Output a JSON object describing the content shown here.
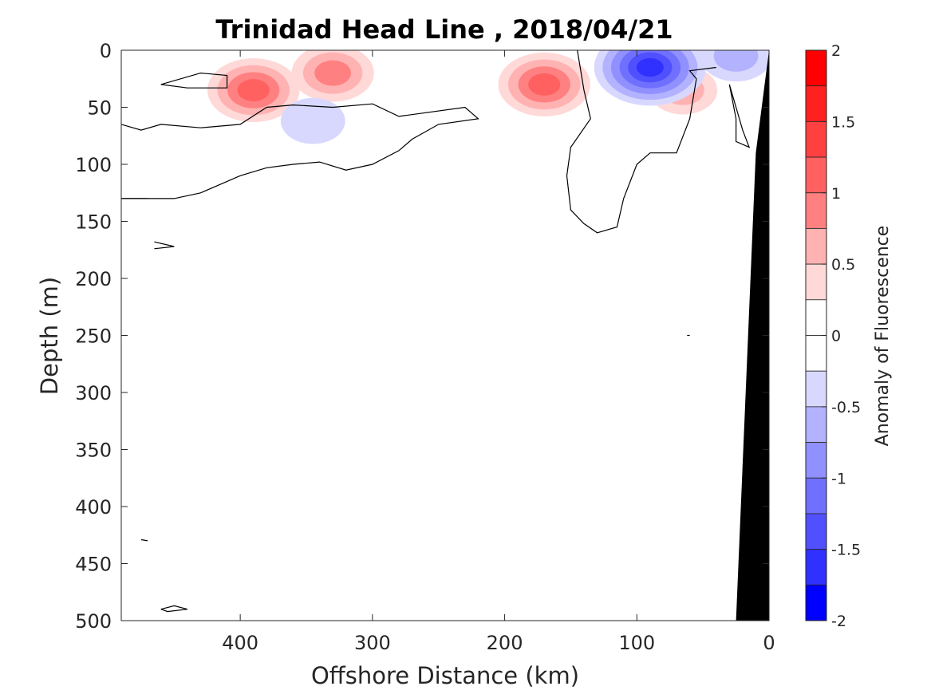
{
  "chart_data": {
    "type": "heatmap",
    "subtype": "filled-contour section",
    "title": "Trinidad Head Line , 2018/04/21",
    "xlabel": "Offshore Distance (km)",
    "ylabel": "Depth (m)",
    "colorbar_label": "Anomaly of Fluorescence",
    "xlim": [
      490,
      0
    ],
    "x_reversed": true,
    "ylim": [
      0,
      500
    ],
    "y_reversed": true,
    "xticks": [
      400,
      300,
      200,
      100,
      0
    ],
    "yticks": [
      0,
      50,
      100,
      150,
      200,
      250,
      300,
      350,
      400,
      450,
      500
    ],
    "colorbar": {
      "range": [
        -2,
        2
      ],
      "ticks": [
        2,
        1.5,
        1,
        0.5,
        0,
        -0.5,
        -1,
        -1.5,
        -2
      ],
      "tick_labels": [
        "2",
        "1.5",
        "1",
        "0.5",
        "0",
        "-0.5",
        "-1",
        "-1.5",
        "-2"
      ],
      "levels": [
        2,
        1.75,
        1.5,
        1.25,
        1,
        0.75,
        0.5,
        0.25,
        0,
        -0.25,
        -0.5,
        -0.75,
        -1,
        -1.25,
        -1.5,
        -1.75,
        -2
      ],
      "band_colors": [
        "#ff0000",
        "#ff2020",
        "#ff4040",
        "#ff6060",
        "#ff8080",
        "#ffb2b2",
        "#ffd8d8",
        "#ffffff",
        "#ffffff",
        "#d8d8ff",
        "#b2b2ff",
        "#9090ff",
        "#7070ff",
        "#5050ff",
        "#3030ff",
        "#0000ff"
      ]
    },
    "positive_anomalies": [
      {
        "x": 390,
        "depth": 35,
        "peak": 1.0
      },
      {
        "x": 330,
        "depth": 20,
        "peak": 0.75
      },
      {
        "x": 170,
        "depth": 30,
        "peak": 1.0
      },
      {
        "x": 65,
        "depth": 35,
        "peak": 0.4
      }
    ],
    "negative_anomalies": [
      {
        "x": 90,
        "depth": 15,
        "peak": -1.5
      },
      {
        "x": 25,
        "depth": 5,
        "peak": -0.5
      },
      {
        "x": 345,
        "depth": 62,
        "peak": -0.3
      }
    ],
    "zero_contours": [
      [
        [
          490,
          130
        ],
        [
          470,
          130
        ],
        [
          450,
          130
        ],
        [
          430,
          125
        ],
        [
          400,
          110
        ],
        [
          380,
          103
        ],
        [
          360,
          100
        ],
        [
          340,
          98
        ],
        [
          320,
          105
        ],
        [
          300,
          100
        ],
        [
          280,
          88
        ],
        [
          270,
          78
        ],
        [
          250,
          65
        ],
        [
          220,
          60
        ],
        [
          230,
          50
        ],
        [
          280,
          58
        ],
        [
          300,
          47
        ],
        [
          330,
          50
        ],
        [
          360,
          48
        ],
        [
          380,
          50
        ],
        [
          400,
          65
        ],
        [
          430,
          68
        ],
        [
          460,
          65
        ],
        [
          475,
          70
        ],
        [
          490,
          65
        ]
      ],
      [
        [
          460,
          30
        ],
        [
          430,
          20
        ],
        [
          410,
          22
        ],
        [
          410,
          33
        ],
        [
          440,
          33
        ],
        [
          460,
          30
        ]
      ],
      [
        [
          490,
          130
        ],
        [
          470,
          130
        ]
      ],
      [
        [
          145,
          0
        ],
        [
          140,
          35
        ],
        [
          135,
          60
        ],
        [
          150,
          85
        ],
        [
          153,
          110
        ],
        [
          150,
          140
        ],
        [
          140,
          152
        ],
        [
          130,
          160
        ],
        [
          115,
          155
        ],
        [
          110,
          130
        ],
        [
          100,
          100
        ],
        [
          90,
          90
        ],
        [
          70,
          90
        ],
        [
          60,
          60
        ],
        [
          55,
          25
        ],
        [
          60,
          18
        ],
        [
          40,
          15
        ]
      ],
      [
        [
          30,
          30
        ],
        [
          25,
          60
        ],
        [
          25,
          80
        ],
        [
          15,
          85
        ],
        [
          20,
          70
        ],
        [
          30,
          30
        ]
      ],
      [
        [
          465,
          168
        ],
        [
          450,
          172
        ],
        [
          465,
          174
        ]
      ],
      [
        [
          475,
          429
        ],
        [
          470,
          430
        ]
      ],
      [
        [
          460,
          490
        ],
        [
          450,
          487
        ],
        [
          440,
          490
        ],
        [
          455,
          492
        ],
        [
          460,
          490
        ]
      ],
      [
        [
          62,
          250
        ],
        [
          60,
          250
        ]
      ]
    ],
    "land": {
      "color": "#000000",
      "polygon": [
        [
          0,
          0
        ],
        [
          10,
          90
        ],
        [
          25,
          500
        ],
        [
          0,
          500
        ]
      ]
    },
    "grid": false,
    "legend": "colorbar on right"
  }
}
